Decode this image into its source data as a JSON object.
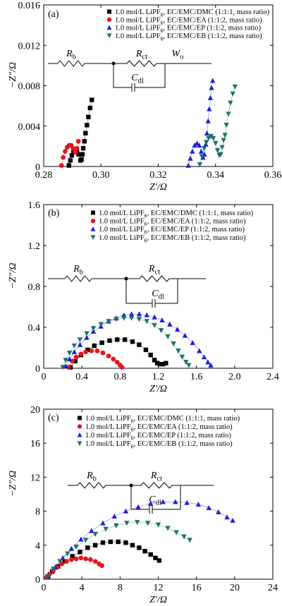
{
  "chart_data": [
    {
      "type": "scatter",
      "panel_label": "(a)",
      "xlabel": "Z′/Ω",
      "ylabel": "−Z″/Ω",
      "xlim": [
        0.28,
        0.36
      ],
      "ylim": [
        0,
        0.016
      ],
      "xticks": [
        "0.28",
        "0.30",
        "0.32",
        "0.34",
        "0.36"
      ],
      "yticks": [
        "0",
        "0.004",
        "0.008",
        "0.012",
        "0.016"
      ],
      "legend_position": "top-right",
      "circuit": {
        "r1": "R_b",
        "r2": "R_ct",
        "cap": "C_dl",
        "extra": "W_o"
      },
      "series": [
        {
          "name": "1.0 mol/L LiPF6, EC/EMC/DMC (1:1:1, mass ratio)",
          "color": "#000000",
          "marker": "square",
          "x": [
            0.2888,
            0.2893,
            0.2898,
            0.2904,
            0.291,
            0.2916,
            0.2922,
            0.2928,
            0.2932,
            0.2935,
            0.2938,
            0.2942,
            0.2946,
            0.2951,
            0.2956,
            0.2962,
            0.2968
          ],
          "y": [
            0.0001,
            0.0006,
            0.0011,
            0.0015,
            0.0017,
            0.0016,
            0.0012,
            0.0006,
            0.0007,
            0.0012,
            0.0018,
            0.0025,
            0.0033,
            0.0041,
            0.0049,
            0.0058,
            0.0066
          ]
        },
        {
          "name": "1.0 mol/L LiPF6, EC/EMC/EA (1:1:2, mass ratio)",
          "color": "#e8141c",
          "marker": "circle",
          "x": [
            0.2862,
            0.2868,
            0.2875,
            0.2882,
            0.2889,
            0.2896,
            0.2903,
            0.291,
            0.2916,
            0.2921
          ],
          "y": [
            0.0001,
            0.0009,
            0.0015,
            0.0019,
            0.0021,
            0.0021,
            0.0018,
            0.0014,
            0.0018,
            0.0025
          ]
        },
        {
          "name": "1.0 mol/L LiPF6, EC/EMC/EP (1:1:2, mass ratio)",
          "color": "#1f1fd6",
          "marker": "triangle",
          "x": [
            0.3305,
            0.3312,
            0.3319,
            0.3327,
            0.3335,
            0.3343,
            0.335,
            0.3356,
            0.3361,
            0.3366,
            0.337,
            0.3374,
            0.3378,
            0.3382,
            0.3386,
            0.339
          ],
          "y": [
            0.0001,
            0.0008,
            0.0015,
            0.0021,
            0.0023,
            0.0021,
            0.0015,
            0.0009,
            0.0012,
            0.0022,
            0.0033,
            0.0045,
            0.0057,
            0.0068,
            0.0078,
            0.0085
          ]
        },
        {
          "name": "1.0 mol/L LiPF6, EC/EMC/EB (1:1:2, mass ratio)",
          "color": "#1e6f6a",
          "marker": "inverted-triangle",
          "x": [
            0.3345,
            0.3352,
            0.336,
            0.3368,
            0.3376,
            0.3384,
            0.3392,
            0.34,
            0.3407,
            0.3413,
            0.3418,
            0.3423,
            0.3428,
            0.3433,
            0.3438,
            0.3445,
            0.3452,
            0.346,
            0.3468
          ],
          "y": [
            0.0002,
            0.001,
            0.0018,
            0.0024,
            0.0028,
            0.003,
            0.0028,
            0.0023,
            0.0016,
            0.0011,
            0.0012,
            0.0019,
            0.0026,
            0.0031,
            0.0041,
            0.0052,
            0.0063,
            0.0072,
            0.0079
          ]
        }
      ]
    },
    {
      "type": "scatter",
      "panel_label": "(b)",
      "xlabel": "Z′/Ω",
      "ylabel": "−Z″/Ω",
      "xlim": [
        0,
        2.4
      ],
      "ylim": [
        0,
        1.6
      ],
      "xticks": [
        "0",
        "0.4",
        "0.8",
        "1.2",
        "1.6",
        "2.0",
        "2.4"
      ],
      "yticks": [
        "0",
        "0.4",
        "0.8",
        "1.2",
        "1.6"
      ],
      "legend_position": "top-right",
      "circuit": {
        "r1": "R_b",
        "r2": "R_ct",
        "cap": "C_dl"
      },
      "series": [
        {
          "name": "1.0 mol/L LiPF6, EC/EMC/DMC (1:1:1, mass ratio)",
          "color": "#000000",
          "marker": "square",
          "x": [
            0.28,
            0.33,
            0.39,
            0.46,
            0.53,
            0.61,
            0.69,
            0.77,
            0.85,
            0.93,
            1.0,
            1.07,
            1.12,
            1.16,
            1.19,
            1.22,
            1.25,
            1.28
          ],
          "y": [
            0.01,
            0.07,
            0.13,
            0.18,
            0.22,
            0.25,
            0.27,
            0.28,
            0.28,
            0.26,
            0.23,
            0.18,
            0.13,
            0.08,
            0.05,
            0.04,
            0.04,
            0.05
          ]
        },
        {
          "name": "1.0 mol/L LiPF6, EC/EMC/EA (1:1:2, mass ratio)",
          "color": "#e8141c",
          "marker": "circle",
          "x": [
            0.26,
            0.3,
            0.34,
            0.39,
            0.44,
            0.5,
            0.56,
            0.62,
            0.68,
            0.73,
            0.77,
            0.8,
            0.82
          ],
          "y": [
            0.01,
            0.07,
            0.11,
            0.14,
            0.16,
            0.17,
            0.17,
            0.15,
            0.12,
            0.09,
            0.06,
            0.03,
            0.01
          ]
        },
        {
          "name": "1.0 mol/L LiPF6, EC/EMC/EP (1:1:2, mass ratio)",
          "color": "#1f1fd6",
          "marker": "triangle",
          "x": [
            0.23,
            0.27,
            0.32,
            0.38,
            0.45,
            0.52,
            0.6,
            0.68,
            0.76,
            0.84,
            0.92,
            1.0,
            1.08,
            1.16,
            1.24,
            1.32,
            1.4,
            1.48,
            1.56,
            1.63,
            1.68,
            1.72,
            1.75
          ],
          "y": [
            0.02,
            0.09,
            0.16,
            0.23,
            0.3,
            0.36,
            0.41,
            0.46,
            0.49,
            0.52,
            0.53,
            0.53,
            0.52,
            0.5,
            0.47,
            0.43,
            0.38,
            0.32,
            0.25,
            0.17,
            0.11,
            0.06,
            0.03
          ]
        },
        {
          "name": "1.0 mol/L LiPF6, EC/EMC/EB (1:1:2, mass ratio)",
          "color": "#1e6f6a",
          "marker": "inverted-triangle",
          "x": [
            0.2,
            0.23,
            0.27,
            0.32,
            0.38,
            0.45,
            0.52,
            0.6,
            0.68,
            0.76,
            0.84,
            0.92,
            1.0,
            1.08,
            1.16,
            1.23,
            1.3,
            1.36,
            1.41,
            1.45,
            1.49,
            1.52
          ],
          "y": [
            0.01,
            0.08,
            0.15,
            0.22,
            0.28,
            0.34,
            0.39,
            0.43,
            0.46,
            0.48,
            0.49,
            0.49,
            0.48,
            0.46,
            0.42,
            0.37,
            0.31,
            0.24,
            0.17,
            0.11,
            0.06,
            0.03
          ]
        }
      ]
    },
    {
      "type": "scatter",
      "panel_label": "(c)",
      "xlabel": "Z′/Ω",
      "ylabel": "−Z″/Ω",
      "xlim": [
        0,
        24
      ],
      "ylim": [
        0,
        20
      ],
      "xticks": [
        "0",
        "4",
        "8",
        "12",
        "16",
        "20",
        "24"
      ],
      "yticks": [
        "0",
        "4",
        "8",
        "12",
        "16",
        "20"
      ],
      "legend_position": "top-right",
      "circuit": {
        "r1": "R_b",
        "r2": "R_ct",
        "cap": "C_dl"
      },
      "series": [
        {
          "name": "1.0 mol/L LiPF6, EC/EMC/DMC (1:1:1, mass ratio)",
          "color": "#000000",
          "marker": "square",
          "x": [
            0.4,
            0.9,
            1.5,
            2.2,
            3.0,
            3.8,
            4.6,
            5.4,
            6.2,
            7.0,
            7.8,
            8.6,
            9.3,
            10.0,
            10.6,
            11.2,
            11.7,
            12.1
          ],
          "y": [
            0.3,
            0.9,
            1.5,
            2.1,
            2.7,
            3.2,
            3.7,
            4.0,
            4.3,
            4.4,
            4.4,
            4.3,
            4.0,
            3.7,
            3.3,
            2.9,
            2.5,
            2.2
          ]
        },
        {
          "name": "1.0 mol/L LiPF6, EC/EMC/EA (1:1:2, mass ratio)",
          "color": "#e8141c",
          "marker": "circle",
          "x": [
            0.3,
            0.6,
            1.0,
            1.4,
            1.9,
            2.4,
            2.9,
            3.4,
            3.9,
            4.4,
            4.9,
            5.4,
            5.8,
            6.1
          ],
          "y": [
            0.2,
            0.6,
            1.0,
            1.4,
            1.8,
            2.1,
            2.3,
            2.4,
            2.5,
            2.4,
            2.3,
            2.1,
            1.8,
            1.6
          ]
        },
        {
          "name": "1.0 mol/L LiPF6, EC/EMC/EP (1:1:2, mass ratio)",
          "color": "#1f1fd6",
          "marker": "triangle",
          "x": [
            0.5,
            1.2,
            2.0,
            2.9,
            3.9,
            5.0,
            6.2,
            7.4,
            8.6,
            9.9,
            11.2,
            12.5,
            13.8,
            15.0,
            16.2,
            17.3,
            18.3,
            19.2,
            19.8
          ],
          "y": [
            0.4,
            1.4,
            2.5,
            3.6,
            4.7,
            5.7,
            6.6,
            7.4,
            8.0,
            8.5,
            8.9,
            9.1,
            9.1,
            9.0,
            8.8,
            8.4,
            7.9,
            7.3,
            6.9
          ]
        },
        {
          "name": "1.0 mol/L LiPF6, EC/EMC/EB (1:1:2, mass ratio)",
          "color": "#1e6f6a",
          "marker": "inverted-triangle",
          "x": [
            0.4,
            1.0,
            1.7,
            2.5,
            3.4,
            4.4,
            5.4,
            6.5,
            7.6,
            8.7,
            9.8,
            10.9,
            12.0,
            13.0,
            13.9,
            14.7,
            15.3
          ],
          "y": [
            0.3,
            1.2,
            2.1,
            3.0,
            3.8,
            4.6,
            5.3,
            5.9,
            6.3,
            6.6,
            6.7,
            6.6,
            6.4,
            6.0,
            5.5,
            5.0,
            4.6
          ]
        }
      ]
    }
  ]
}
